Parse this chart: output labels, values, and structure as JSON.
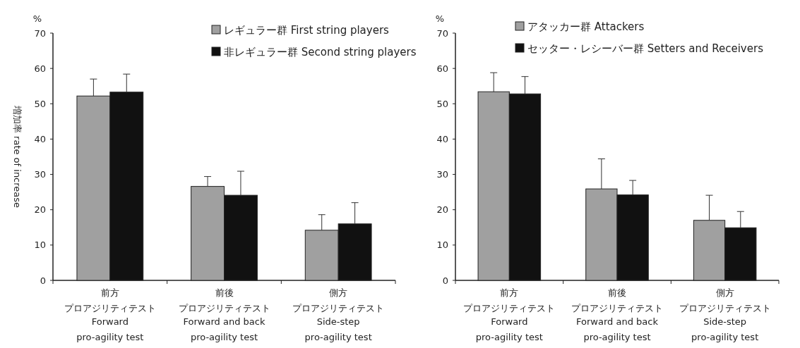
{
  "chart_data": [
    {
      "type": "bar",
      "ylabel": "増加率 rate of increase",
      "annotations": [
        "%"
      ],
      "categories": [
        "前方プロアジリティテスト\nForward\npro-agility test",
        "前後プロアジリティテスト\nForward and back\npro-agility test",
        "側方プロアジリティテスト\nSide-step\npro-agility test"
      ],
      "series": [
        {
          "name": "レギュラー群 First string players",
          "color": "#a0a0a0",
          "values": [
            52.2,
            26.6,
            14.2
          ],
          "errors": [
            [
              52.2,
              57.0
            ],
            [
              26.6,
              29.4
            ],
            [
              14.2,
              18.6
            ]
          ]
        },
        {
          "name": "非レギュラー群 Second string players",
          "color": "#111111",
          "values": [
            53.3,
            24.1,
            16.0
          ],
          "errors": [
            [
              53.3,
              58.4
            ],
            [
              24.1,
              30.9
            ],
            [
              16.0,
              22.0
            ]
          ]
        }
      ],
      "ylim": [
        0,
        70
      ],
      "yticks": [
        0,
        10,
        20,
        30,
        40,
        50,
        60,
        70
      ],
      "legend": "top right"
    },
    {
      "type": "bar",
      "annotations": [
        "%"
      ],
      "categories": [
        "前方プロアジリティテスト\nForward\npro-agility test",
        "前後プロアジリティテスト\nForward and back\npro-agility test",
        "側方プロアジリティテスト\nSide-step\npro-agility test"
      ],
      "series": [
        {
          "name": "アタッカー群 Attackers",
          "color": "#a0a0a0",
          "values": [
            53.4,
            25.9,
            17.0
          ],
          "errors": [
            [
              53.4,
              58.8
            ],
            [
              25.9,
              34.4
            ],
            [
              17.0,
              24.1
            ]
          ]
        },
        {
          "name": "セッター・レシーバー群 Setters and Receivers",
          "color": "#111111",
          "values": [
            52.8,
            24.2,
            14.9
          ],
          "errors": [
            [
              52.8,
              57.7
            ],
            [
              24.2,
              28.3
            ],
            [
              14.9,
              19.5
            ]
          ]
        }
      ],
      "ylim": [
        0,
        70
      ],
      "yticks": [
        0,
        10,
        20,
        30,
        40,
        50,
        60,
        70
      ],
      "legend": "top"
    }
  ]
}
